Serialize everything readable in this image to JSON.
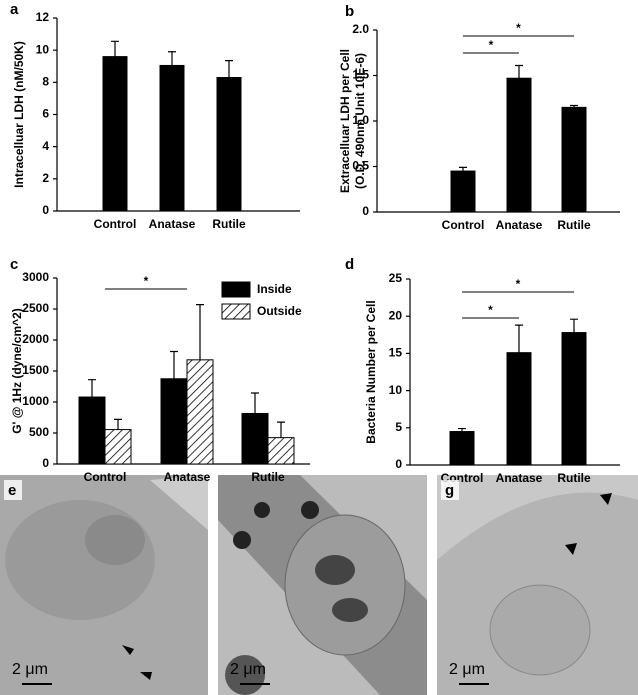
{
  "chart_data": [
    {
      "type": "bar",
      "label": "a",
      "ylabel": [
        "Intracelluar LDH (nM/50K)"
      ],
      "categories": [
        "Control",
        "Anatase",
        "Rutile"
      ],
      "series": [
        {
          "color": "#000000",
          "values": [
            9.6,
            9.05,
            8.3
          ],
          "errors": [
            0.95,
            0.85,
            1.05
          ]
        }
      ],
      "ylim": [
        0,
        12
      ],
      "yticks": [
        0,
        2,
        4,
        6,
        8,
        10,
        12
      ],
      "significance": []
    },
    {
      "type": "bar",
      "label": "b",
      "ylabel": [
        "Extracelluar LDH per Cell",
        "(O.D. 490nm Unit 10E-6)"
      ],
      "categories": [
        "Control",
        "Anatase",
        "Rutile"
      ],
      "series": [
        {
          "color": "#000000",
          "values": [
            0.45,
            1.47,
            1.15
          ],
          "errors": [
            0.04,
            0.14,
            0.02
          ]
        }
      ],
      "ylim": [
        0,
        2
      ],
      "yticks": [
        0,
        0.5,
        {
          "value": 1,
          "label": "1.0"
        },
        1.5,
        {
          "value": 2,
          "label": "2.0"
        }
      ],
      "significance": [
        {
          "between": [
            "Control",
            "Anatase"
          ],
          "label": "*"
        },
        {
          "between": [
            "Control",
            "Rutile"
          ],
          "label": "*"
        }
      ]
    },
    {
      "type": "bar",
      "label": "c",
      "ylabel": [
        "G' @ 1Hz (dyne/cm^2)"
      ],
      "categories": [
        "Control",
        "Anatase",
        "Rutile"
      ],
      "series": [
        {
          "name": "Inside",
          "color": "#000000",
          "values": [
            1080,
            1375,
            815
          ],
          "errors": [
            280,
            440,
            330
          ]
        },
        {
          "name": "Outside",
          "color": "hatch",
          "values": [
            555,
            1680,
            425
          ],
          "errors": [
            165,
            890,
            250
          ]
        }
      ],
      "ylim": [
        0,
        3000
      ],
      "yticks": [
        0,
        500,
        1000,
        1500,
        2000,
        2500,
        3000
      ],
      "legend": "top-right",
      "significance": [
        {
          "between": [
            "Control",
            "Anatase"
          ],
          "label": "*"
        }
      ]
    },
    {
      "type": "bar",
      "label": "d",
      "ylabel": [
        "Bacteria Number per Cell"
      ],
      "categories": [
        "Control",
        "Anatase",
        "Rutile"
      ],
      "series": [
        {
          "color": "#000000",
          "values": [
            4.5,
            15.1,
            17.8
          ],
          "errors": [
            0.4,
            3.7,
            1.8
          ]
        }
      ],
      "ylim": [
        0,
        25
      ],
      "yticks": [
        0,
        5,
        10,
        15,
        20,
        25
      ],
      "significance": [
        {
          "between": [
            "Control",
            "Anatase"
          ],
          "label": "*"
        },
        {
          "between": [
            "Control",
            "Rutile"
          ],
          "label": "*"
        }
      ]
    }
  ],
  "images": [
    {
      "label": "e",
      "scale": "2 μm"
    },
    {
      "scale": "2 μm"
    },
    {
      "label": "g",
      "scale": "2 μm"
    }
  ]
}
